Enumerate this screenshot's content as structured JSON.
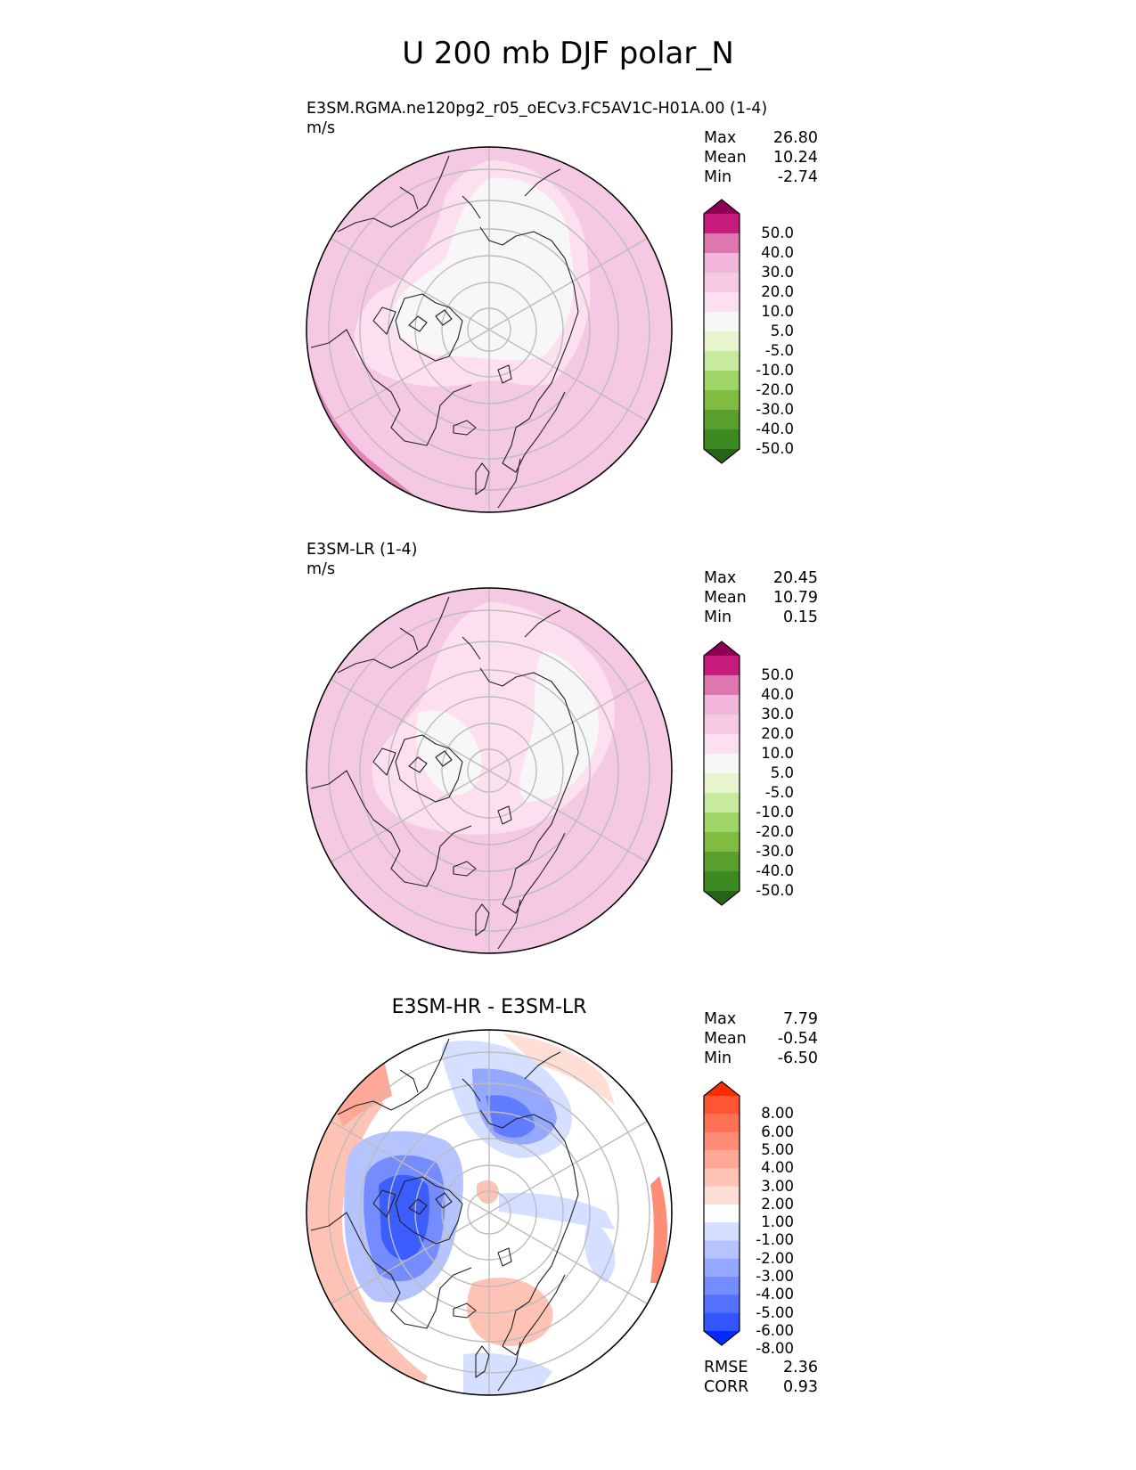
{
  "title": "U 200 mb DJF polar_N",
  "panels": [
    {
      "id": "test",
      "line1": "E3SM.RGMA.ne120pg2_r05_oECv3.FC5AV1C-H01A.00 (1-4)",
      "line2": "m/s",
      "stats": [
        {
          "label": "Max",
          "value": "26.80"
        },
        {
          "label": "Mean",
          "value": "10.24"
        },
        {
          "label": "Min",
          "value": "-2.74"
        }
      ]
    },
    {
      "id": "ref",
      "line1": "E3SM-LR (1-4)",
      "line2": "m/s",
      "stats": [
        {
          "label": "Max",
          "value": "20.45"
        },
        {
          "label": "Mean",
          "value": "10.79"
        },
        {
          "label": "Min",
          "value": "0.15"
        }
      ]
    },
    {
      "id": "diff",
      "title": "E3SM-HR - E3SM-LR",
      "stats": [
        {
          "label": "Max",
          "value": "7.79"
        },
        {
          "label": "Mean",
          "value": "-0.54"
        },
        {
          "label": "Min",
          "value": "-6.50"
        }
      ],
      "metrics": [
        {
          "label": "RMSE",
          "value": "2.36"
        },
        {
          "label": "CORR",
          "value": "0.93"
        }
      ]
    }
  ],
  "colorbars": {
    "main": {
      "labels": [
        "50.0",
        "40.0",
        "30.0",
        "20.0",
        "10.0",
        "5.0",
        "-5.0",
        "-10.0",
        "-20.0",
        "-30.0",
        "-40.0",
        "-50.0"
      ],
      "colors": [
        "#8e0152",
        "#c51b7d",
        "#de77ae",
        "#f1b6da",
        "#f5c9e3",
        "#fde0ef",
        "#f7f7f7",
        "#e6f5d0",
        "#c7e9a0",
        "#a1d56a",
        "#7fbc41",
        "#5a9e2d",
        "#3e8a22",
        "#276419"
      ]
    },
    "diff": {
      "labels": [
        "8.00",
        "6.00",
        "5.00",
        "4.00",
        "3.00",
        "2.00",
        "1.00",
        "-1.00",
        "-2.00",
        "-3.00",
        "-4.00",
        "-5.00",
        "-6.00",
        "-8.00"
      ],
      "colors": [
        "#ff2a00",
        "#ff5533",
        "#ff7055",
        "#ff8c75",
        "#ffa895",
        "#ffc3b5",
        "#ffdfd5",
        "#ffffff",
        "#d5dfff",
        "#b5c3ff",
        "#95a8ff",
        "#758cff",
        "#5570ff",
        "#3355ff",
        "#002aff"
      ]
    }
  },
  "map_colors": {
    "land_line": "#222222",
    "grid": "#bcbcbc"
  }
}
